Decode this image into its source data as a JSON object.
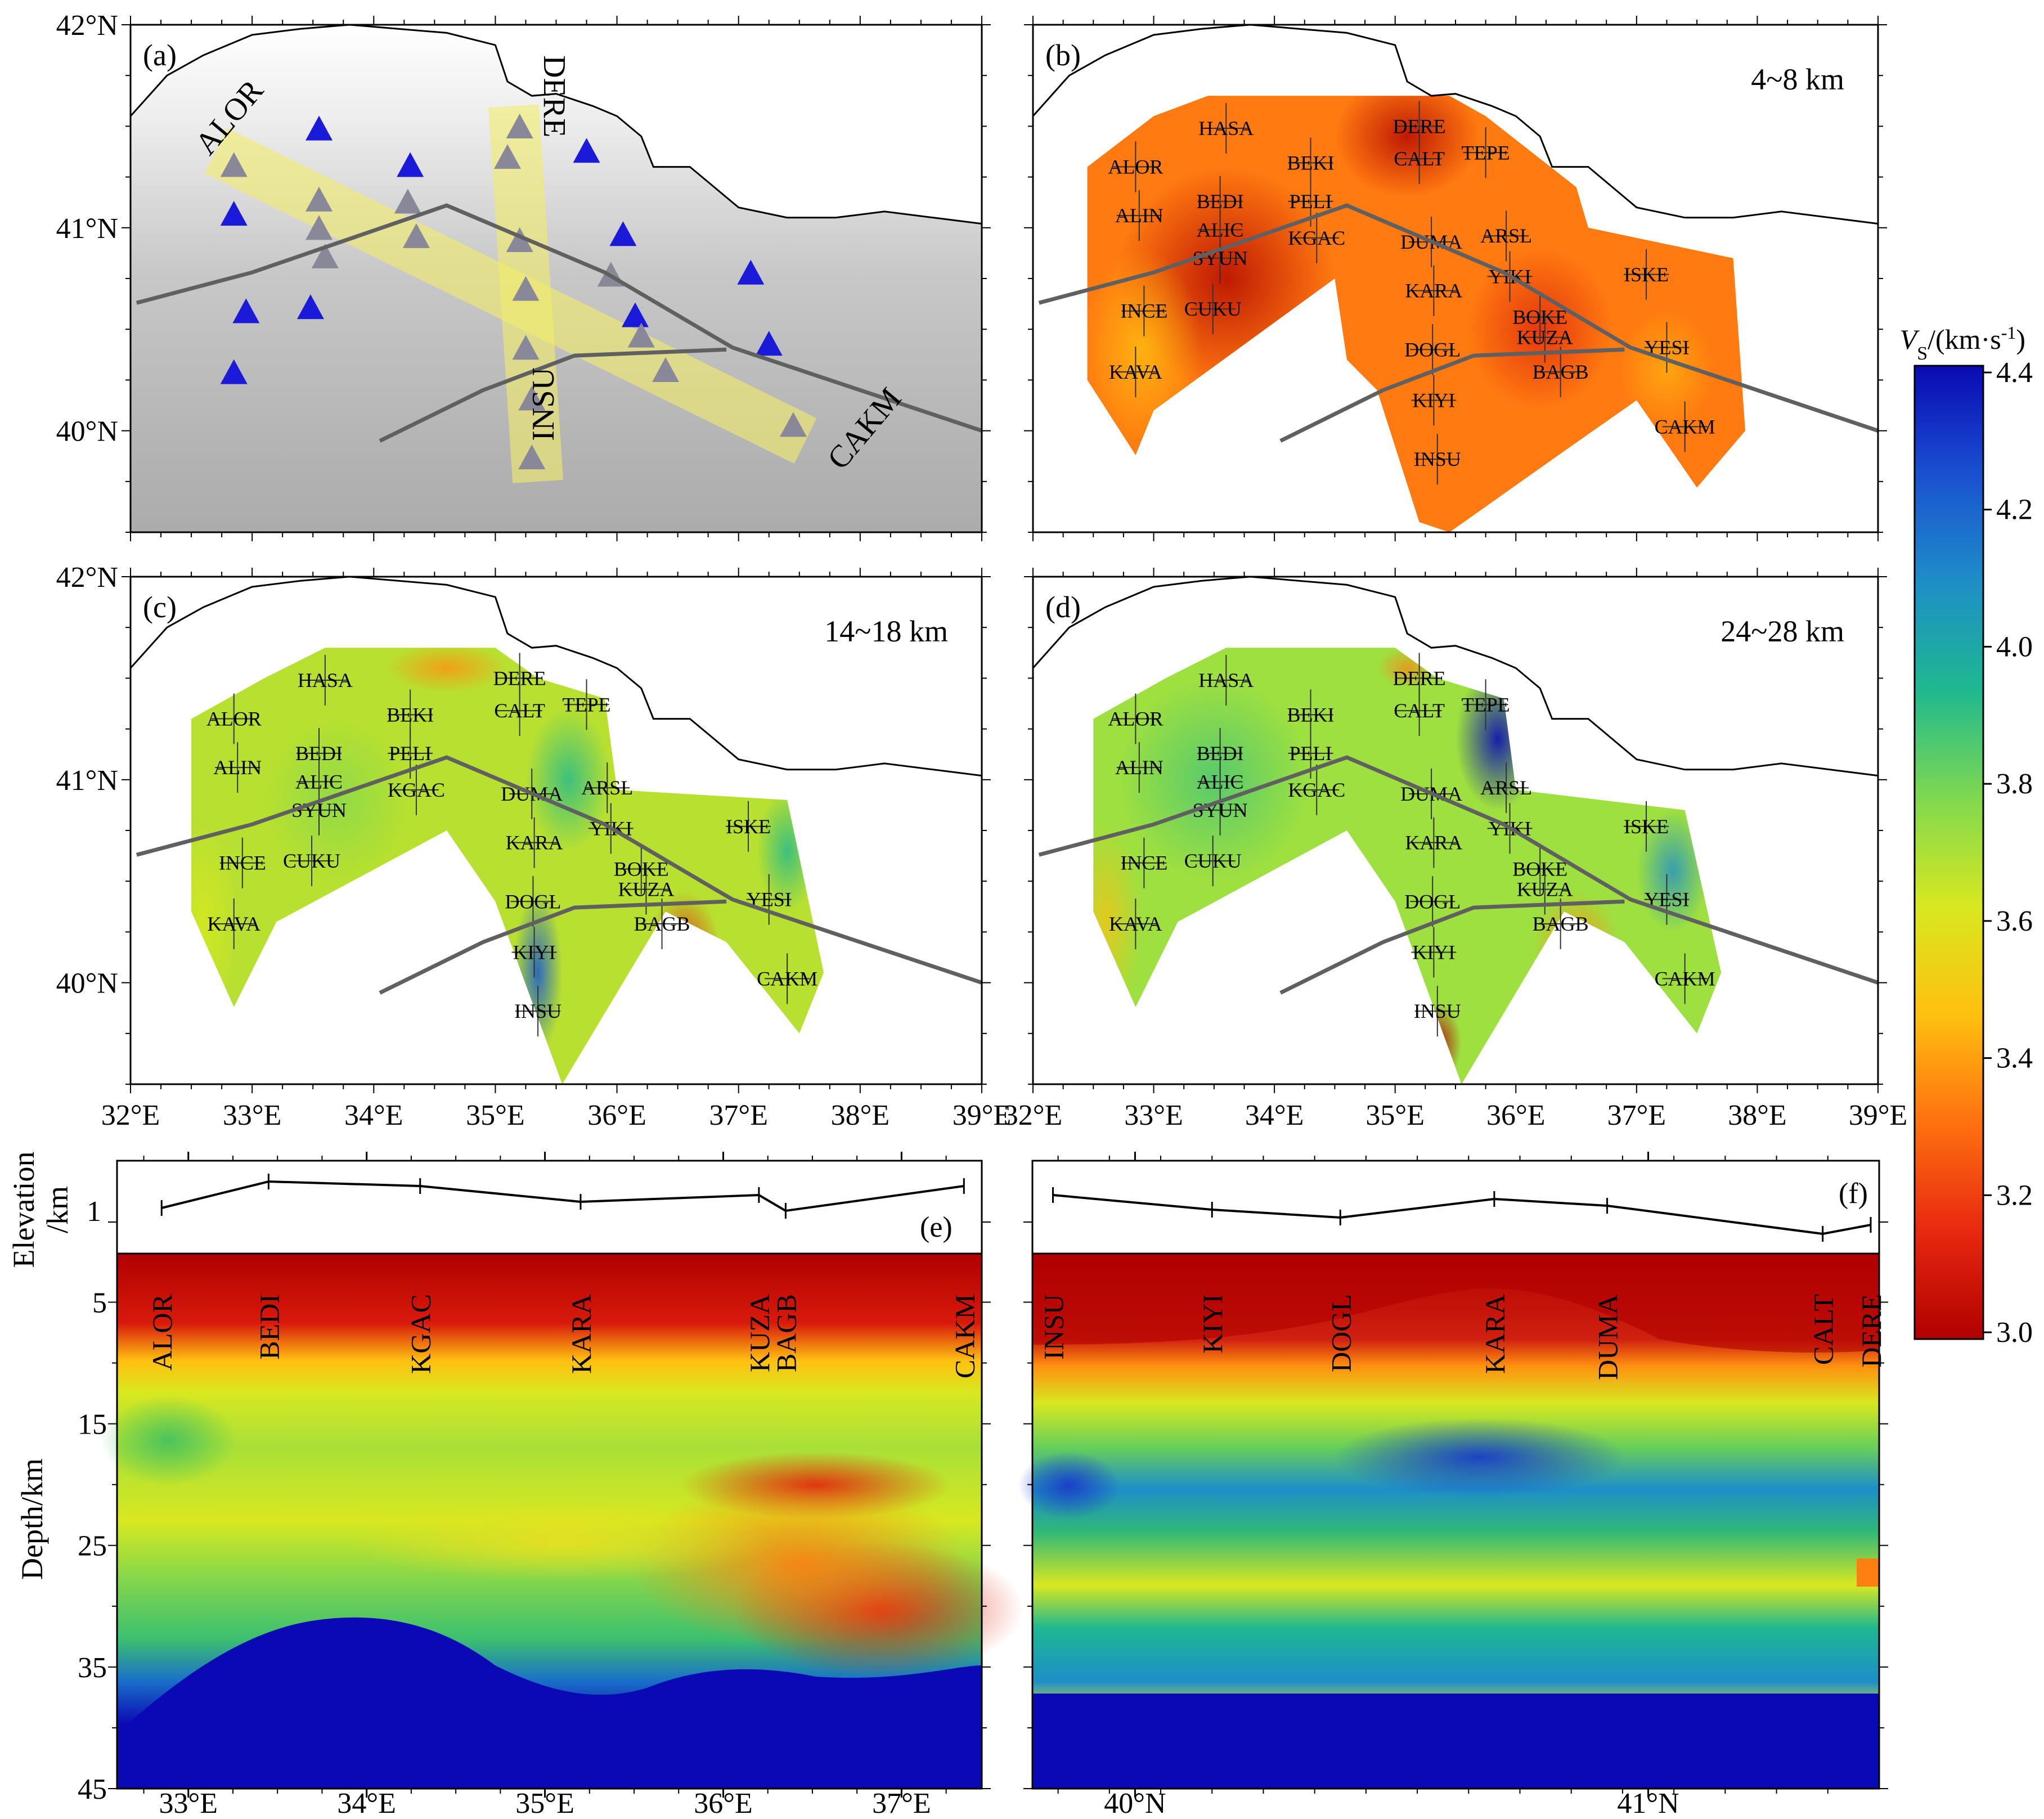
{
  "map_panels": {
    "a": {
      "label": "(a)",
      "depth": ""
    },
    "b": {
      "label": "(b)",
      "depth": "4~8 km"
    },
    "c": {
      "label": "(c)",
      "depth": "14~18 km"
    },
    "d": {
      "label": "(d)",
      "depth": "24~28 km"
    }
  },
  "profile_labels": {
    "a": [
      "ALOR",
      "CAKM"
    ],
    "b": [
      "DERE",
      "INSU"
    ]
  },
  "map_axes": {
    "lat_ticks": [
      "42°N",
      "41°N",
      "40°N"
    ],
    "lon_ticks": [
      "32°E",
      "33°E",
      "34°E",
      "35°E",
      "36°E",
      "37°E",
      "38°E",
      "39°E"
    ]
  },
  "colorbar": {
    "title_v": "V",
    "title_sub": "S",
    "title_unit": "/(km·s",
    "title_exp": "-1",
    "title_close": ")",
    "ticks": [
      "4.4",
      "4.2",
      "4.0",
      "3.8",
      "3.6",
      "3.4",
      "3.2",
      "3.0"
    ],
    "colors": [
      "#0a0ab4",
      "#1a50d0",
      "#1e8ec8",
      "#1fb890",
      "#7fd850",
      "#d8e820",
      "#ffc010",
      "#ff7010",
      "#e82810",
      "#b00000"
    ]
  },
  "stations": [
    {
      "code": "HASA",
      "lon": 33.6,
      "lat": 41.49,
      "shown": [
        1,
        1,
        1
      ]
    },
    {
      "code": "DERE",
      "lon": 35.2,
      "lat": 41.5,
      "shown": [
        1,
        1,
        1
      ]
    },
    {
      "code": "ALOR",
      "lon": 32.85,
      "lat": 41.3,
      "shown": [
        1,
        1,
        1
      ]
    },
    {
      "code": "BEKI",
      "lon": 34.3,
      "lat": 41.32,
      "shown": [
        1,
        1,
        1
      ]
    },
    {
      "code": "CALT",
      "lon": 35.2,
      "lat": 41.34,
      "shown": [
        1,
        1,
        1
      ]
    },
    {
      "code": "TEPE",
      "lon": 35.75,
      "lat": 41.37,
      "shown": [
        1,
        1,
        1
      ]
    },
    {
      "code": "ALIN",
      "lon": 32.88,
      "lat": 41.06,
      "shown": [
        1,
        1,
        1
      ]
    },
    {
      "code": "BEDI",
      "lon": 33.55,
      "lat": 41.13,
      "shown": [
        1,
        1,
        1
      ]
    },
    {
      "code": "PELI",
      "lon": 34.3,
      "lat": 41.13,
      "shown": [
        1,
        1,
        1
      ]
    },
    {
      "code": "ALIC",
      "lon": 33.55,
      "lat": 40.99,
      "shown": [
        1,
        1,
        1
      ]
    },
    {
      "code": "KGAC",
      "lon": 34.35,
      "lat": 40.95,
      "shown": [
        1,
        1,
        1
      ]
    },
    {
      "code": "DUMA",
      "lon": 35.3,
      "lat": 40.93,
      "shown": [
        1,
        1,
        1
      ]
    },
    {
      "code": "ARSL",
      "lon": 35.92,
      "lat": 40.96,
      "shown": [
        1,
        1,
        1
      ]
    },
    {
      "code": "SYUN",
      "lon": 33.55,
      "lat": 40.85,
      "shown": [
        1,
        1,
        1
      ]
    },
    {
      "code": "YIKI",
      "lon": 35.95,
      "lat": 40.76,
      "shown": [
        1,
        1,
        1
      ]
    },
    {
      "code": "ISKE",
      "lon": 37.08,
      "lat": 40.77,
      "shown": [
        1,
        1,
        1
      ]
    },
    {
      "code": "KARA",
      "lon": 35.32,
      "lat": 40.69,
      "shown": [
        1,
        1,
        1
      ]
    },
    {
      "code": "INCE",
      "lon": 32.92,
      "lat": 40.59,
      "shown": [
        1,
        1,
        1
      ]
    },
    {
      "code": "CUKU",
      "lon": 33.49,
      "lat": 40.6,
      "shown": [
        1,
        1,
        1
      ]
    },
    {
      "code": "BOKE",
      "lon": 36.2,
      "lat": 40.56,
      "shown": [
        1,
        1,
        1
      ]
    },
    {
      "code": "KUZA",
      "lon": 36.24,
      "lat": 40.46,
      "shown": [
        1,
        1,
        1
      ]
    },
    {
      "code": "YESI",
      "lon": 37.25,
      "lat": 40.41,
      "shown": [
        1,
        1,
        1
      ]
    },
    {
      "code": "DOGL",
      "lon": 35.31,
      "lat": 40.4,
      "shown": [
        1,
        1,
        1
      ]
    },
    {
      "code": "BAGB",
      "lon": 36.37,
      "lat": 40.29,
      "shown": [
        1,
        1,
        1
      ]
    },
    {
      "code": "KAVA",
      "lon": 32.85,
      "lat": 40.29,
      "shown": [
        1,
        1,
        1
      ]
    },
    {
      "code": "KIYI",
      "lon": 35.32,
      "lat": 40.15,
      "shown": [
        1,
        1,
        1
      ]
    },
    {
      "code": "CAKM",
      "lon": 37.4,
      "lat": 40.02,
      "shown": [
        1,
        1,
        1
      ]
    },
    {
      "code": "INSU",
      "lon": 35.35,
      "lat": 39.86,
      "shown": [
        1,
        1,
        1
      ]
    }
  ],
  "section_e": {
    "panel_label": "(e)",
    "x_ticks": [
      "33°E",
      "34°E",
      "35°E",
      "36°E",
      "37°E"
    ],
    "stations": [
      "ALOR",
      "BEDI",
      "KGAC",
      "KARA",
      "KUZA",
      "BAGB",
      "CAKM"
    ]
  },
  "section_f": {
    "panel_label": "(f)",
    "x_ticks": [
      "40°N",
      "41°N"
    ],
    "stations": [
      "INSU",
      "KIYI",
      "DOGL",
      "KARA",
      "DUMA",
      "CALT",
      "DERE"
    ]
  },
  "section_axes": {
    "elevation_label": "Elevation",
    "elevation_unit": "/km",
    "elevation_tick": "1",
    "depth_label": "Depth/km",
    "depth_ticks": [
      "5",
      "15",
      "25",
      "35",
      "45"
    ]
  }
}
